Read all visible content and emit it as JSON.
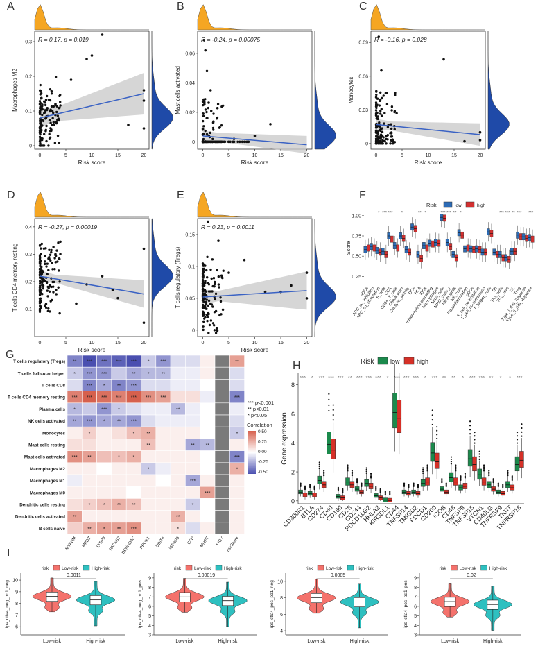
{
  "colors": {
    "density_top": "#f5a623",
    "density_right": "#1f4aa8",
    "fit_line": "#3a62c4",
    "band": "#c8c8c8",
    "low_F": "#2c6bb5",
    "high_F": "#d32f2f",
    "low_H": "#1b8a4c",
    "high_H": "#d63027",
    "low_I": "#f4726c",
    "high_I": "#2ec0c0",
    "heat_pos": "#d6604d",
    "heat_neg": "#4a4fb0"
  },
  "chart_data": [
    {
      "panel": "A",
      "type": "scatter",
      "annotation": "R = 0.17, p = 0.019",
      "xlabel": "Risk score",
      "ylabel": "Macrophages M2",
      "xticks": [
        0,
        5,
        10,
        15,
        20
      ],
      "yticks": [
        0.0,
        0.1,
        0.2,
        0.3
      ],
      "xlim": [
        -1,
        21
      ],
      "ylim": [
        -0.01,
        0.33
      ],
      "fit": {
        "x": [
          0,
          20
        ],
        "y": [
          0.08,
          0.15
        ],
        "band": [
          0.02,
          0.06
        ]
      },
      "outliers": [
        [
          3,
          0.12
        ],
        [
          6,
          0.19
        ],
        [
          9,
          0.25
        ],
        [
          10,
          0.26
        ],
        [
          12,
          0.32
        ],
        [
          17,
          0.06
        ],
        [
          20,
          0.13
        ],
        [
          20,
          0.16
        ],
        [
          20,
          0.05
        ]
      ]
    },
    {
      "panel": "B",
      "type": "scatter",
      "annotation": "R = -0.24, p = 0.00075",
      "xlabel": "Risk score",
      "ylabel": "Mast cells activated",
      "xticks": [
        0,
        5,
        10,
        15,
        20
      ],
      "yticks": [
        0.0,
        0.02,
        0.04,
        0.06
      ],
      "xlim": [
        -1,
        21
      ],
      "ylim": [
        -0.005,
        0.075
      ],
      "fit": {
        "x": [
          0,
          20
        ],
        "y": [
          0.004,
          -0.002
        ],
        "band": [
          0.003,
          0.006
        ]
      },
      "outliers": [
        [
          0.2,
          0.069
        ],
        [
          0.5,
          0.062
        ],
        [
          0.8,
          0.048
        ],
        [
          1.5,
          0.035
        ],
        [
          2,
          0.013
        ],
        [
          6,
          0.002
        ],
        [
          10,
          0.004
        ],
        [
          13,
          0.012
        ]
      ]
    },
    {
      "panel": "C",
      "type": "scatter",
      "annotation": "R = -0.16, p = 0.028",
      "xlabel": "Risk score",
      "ylabel": "Monocytes",
      "xticks": [
        0,
        5,
        10,
        15,
        20
      ],
      "yticks": [
        0.0,
        0.03,
        0.06,
        0.09
      ],
      "xlim": [
        -1,
        21
      ],
      "ylim": [
        -0.005,
        0.1
      ],
      "fit": {
        "x": [
          0,
          20
        ],
        "y": [
          0.017,
          0.008
        ],
        "band": [
          0.004,
          0.01
        ]
      },
      "outliers": [
        [
          0.5,
          0.095
        ],
        [
          1,
          0.065
        ],
        [
          2,
          0.045
        ],
        [
          13,
          0.075
        ],
        [
          20,
          0.01
        ],
        [
          20,
          0.003
        ],
        [
          17,
          0.002
        ]
      ]
    },
    {
      "panel": "D",
      "type": "scatter",
      "annotation": "R = -0.27, p = 0.00019",
      "xlabel": "Risk score",
      "ylabel": "T cells CD4 memory resting",
      "xticks": [
        0,
        5,
        10,
        15,
        20
      ],
      "yticks": [
        0.1,
        0.2,
        0.3,
        0.4
      ],
      "xlim": [
        -1,
        21
      ],
      "ylim": [
        0.0,
        0.43
      ],
      "fit": {
        "x": [
          0,
          20
        ],
        "y": [
          0.22,
          0.155
        ],
        "band": [
          0.015,
          0.05
        ]
      },
      "outliers": [
        [
          3,
          0.3
        ],
        [
          7,
          0.12
        ],
        [
          9,
          0.19
        ],
        [
          12,
          0.22
        ],
        [
          14,
          0.17
        ],
        [
          15,
          0.14
        ],
        [
          20,
          0.32
        ],
        [
          20,
          0.05
        ]
      ]
    },
    {
      "panel": "E",
      "type": "scatter",
      "annotation": "R = 0.23, p = 0.0011",
      "xlabel": "Risk score",
      "ylabel": "T cells regulatory (Tregs)",
      "xticks": [
        0,
        5,
        10,
        15,
        20
      ],
      "yticks": [
        0.0,
        0.05,
        0.1,
        0.15
      ],
      "xlim": [
        -1,
        21
      ],
      "ylim": [
        -0.01,
        0.175
      ],
      "fit": {
        "x": [
          0,
          20
        ],
        "y": [
          0.052,
          0.062
        ],
        "band": [
          0.008,
          0.03
        ]
      },
      "outliers": [
        [
          1,
          0.17
        ],
        [
          3,
          0.14
        ],
        [
          5,
          0.09
        ],
        [
          8,
          0.11
        ],
        [
          12,
          0.06
        ],
        [
          15,
          0.06
        ],
        [
          17,
          0.07
        ],
        [
          20,
          0.05
        ],
        [
          20,
          0.09
        ]
      ]
    },
    {
      "panel": "F",
      "type": "box",
      "legend_title": "Risk",
      "legend": [
        "low",
        "high"
      ],
      "ylabel": "Score",
      "yticks": [
        0.25,
        0.5,
        0.75,
        1.0
      ],
      "ylim": [
        0.15,
        1.05
      ],
      "categories": [
        "aDCs",
        "APC_co_inhibition",
        "APC_co_stimulation",
        "B_cells",
        "CCR",
        "CD8+_T_cells",
        "Check-point",
        "Cytolytic_activity",
        "DCs",
        "HLA",
        "iDCs",
        "Inflammation-promoting",
        "Macrophages",
        "Mast_cells",
        "MHC_class_I",
        "Neutrophils",
        "NK_cells",
        "Parainflammation",
        "pDCs",
        "T_cell_co-inhibition",
        "T_cell_co-stimulation",
        "T_helper_cells",
        "Tfh",
        "Th1_cells",
        "Th2_cells",
        "TIL",
        "Treg",
        "Type_I_IFN_Reponse",
        "Type_II_IFN_Reponse"
      ],
      "sig": [
        "",
        "",
        "*",
        "***",
        "***",
        "",
        "*",
        "",
        "",
        "**",
        "*",
        "",
        "",
        "***",
        "***",
        "**",
        "*",
        "",
        "",
        "",
        "",
        "",
        "",
        "***",
        "***",
        "**",
        "***",
        "",
        "***"
      ],
      "low_medians": [
        0.58,
        0.62,
        0.57,
        0.56,
        0.75,
        0.63,
        0.75,
        0.58,
        0.86,
        0.52,
        0.63,
        0.66,
        0.67,
        0.98,
        0.67,
        0.52,
        0.79,
        0.59,
        0.59,
        0.59,
        0.55,
        0.8,
        0.55,
        0.52,
        0.48,
        0.56,
        0.76,
        0.74,
        0.73
      ],
      "high_medians": [
        0.6,
        0.6,
        0.55,
        0.52,
        0.71,
        0.6,
        0.72,
        0.55,
        0.84,
        0.47,
        0.6,
        0.65,
        0.66,
        0.97,
        0.62,
        0.48,
        0.76,
        0.6,
        0.58,
        0.58,
        0.55,
        0.78,
        0.52,
        0.48,
        0.46,
        0.56,
        0.74,
        0.72,
        0.71
      ]
    },
    {
      "panel": "G",
      "type": "heatmap",
      "rows": [
        "T cells regulatory (Tregs)",
        "T cells follicular helper",
        "T cells CD8",
        "T cells CD4 memory resting",
        "Plasma cells",
        "NK cells activated",
        "Monocytes",
        "Mast cells resting",
        "Mast cells activated",
        "Macrophages M2",
        "Macrophages M1",
        "Macrophages M0",
        "Dendritic cells resting",
        "Dendritic cells activated",
        "B cells naive"
      ],
      "cols": [
        "MYADM",
        "MPDZ",
        "LTBP3",
        "PAPSS2",
        "DENND4C",
        "PROX1",
        "DDIT4",
        "IGFBP3",
        "CFD",
        "MMP7",
        "PIGY",
        "riskScore"
      ],
      "values": [
        [
          -0.35,
          -0.55,
          -0.4,
          -0.45,
          -0.5,
          -0.15,
          -0.3,
          -0.1,
          -0.1,
          0.05,
          0,
          0.3
        ],
        [
          -0.15,
          -0.3,
          -0.3,
          -0.15,
          -0.25,
          -0.2,
          -0.2,
          -0.05,
          -0.05,
          0.05,
          0,
          -0.1
        ],
        [
          -0.1,
          -0.35,
          -0.25,
          -0.35,
          -0.3,
          -0.1,
          -0.1,
          -0.05,
          -0.05,
          0.0,
          0,
          -0.1
        ],
        [
          0.4,
          0.5,
          0.45,
          0.4,
          0.5,
          0.35,
          0.3,
          0.1,
          0.1,
          -0.05,
          0,
          -0.35
        ],
        [
          -0.2,
          -0.15,
          -0.3,
          -0.15,
          -0.1,
          -0.05,
          -0.05,
          -0.2,
          -0.05,
          0.0,
          0,
          -0.05
        ],
        [
          -0.25,
          -0.3,
          -0.25,
          -0.25,
          -0.3,
          -0.1,
          -0.05,
          -0.05,
          -0.05,
          0.0,
          0,
          -0.1
        ],
        [
          0.05,
          0.15,
          0.05,
          0.1,
          0.2,
          0.25,
          0.05,
          0.05,
          0.05,
          0.0,
          0,
          -0.15
        ],
        [
          0.1,
          0.1,
          0.05,
          0.05,
          0.05,
          0.2,
          0.05,
          0.05,
          -0.25,
          -0.2,
          0,
          0.05
        ],
        [
          0.35,
          0.3,
          0.2,
          0.2,
          0.25,
          0.05,
          0.05,
          0.05,
          0.05,
          0.0,
          0,
          -0.35
        ],
        [
          0.05,
          0.05,
          0.0,
          0.05,
          0.05,
          -0.15,
          -0.05,
          0.05,
          0.05,
          0.0,
          0,
          0.25
        ],
        [
          -0.05,
          0.05,
          0.05,
          0.05,
          0.05,
          0.05,
          0.0,
          0.05,
          -0.25,
          0.05,
          0,
          0.05
        ],
        [
          0.05,
          0.05,
          0.05,
          0.05,
          0.0,
          0.05,
          0.05,
          0.05,
          0.05,
          0.3,
          0,
          0.05
        ],
        [
          0.1,
          0.15,
          0.2,
          0.25,
          0.2,
          0.05,
          0.05,
          0.05,
          -0.15,
          0.0,
          0,
          0.05
        ],
        [
          0.3,
          0.05,
          0.05,
          0.05,
          0.05,
          0.05,
          0.05,
          0.25,
          0.05,
          0.0,
          0,
          0.05
        ],
        [
          0.15,
          0.25,
          0.3,
          0.3,
          0.35,
          0.05,
          0.05,
          0.1,
          -0.1,
          0.05,
          0,
          0.05
        ]
      ],
      "stars": [
        [
          "**",
          "***",
          "***",
          "***",
          "***",
          "*",
          "***",
          "",
          "",
          "",
          "",
          "**"
        ],
        [
          "*",
          "***",
          "***",
          "",
          "**",
          "*",
          "**",
          "",
          "",
          "",
          "",
          ""
        ],
        [
          "",
          "***",
          "*",
          "**",
          "***",
          "",
          "",
          "",
          "",
          "",
          "",
          ""
        ],
        [
          "***",
          "***",
          "***",
          "***",
          "***",
          "***",
          "***",
          "",
          "",
          "",
          "",
          "***"
        ],
        [
          "*",
          "",
          "***",
          "*",
          "",
          "",
          "",
          "**",
          "",
          "",
          "",
          ""
        ],
        [
          "**",
          "***",
          "*",
          "**",
          "***",
          "",
          "",
          "",
          "",
          "",
          "",
          ""
        ],
        [
          "",
          "*",
          "",
          "",
          "*",
          "**",
          "",
          "",
          "",
          "",
          "",
          "*"
        ],
        [
          "",
          "",
          "",
          "",
          "",
          "**",
          "",
          "",
          "**",
          "**",
          "",
          ""
        ],
        [
          "***",
          "**",
          "",
          "*",
          "*",
          "",
          "",
          "",
          "",
          "",
          "",
          "***"
        ],
        [
          "",
          "",
          "",
          "",
          "",
          "*",
          "",
          "",
          "",
          "",
          "",
          "*"
        ],
        [
          "",
          "",
          "",
          "",
          "",
          "",
          "",
          "",
          "***",
          "",
          "",
          ""
        ],
        [
          "",
          "",
          "",
          "",
          "",
          "",
          "",
          "",
          "",
          "***",
          "",
          ""
        ],
        [
          "",
          "*",
          "*",
          "**",
          "**",
          "",
          "",
          "",
          "*",
          "",
          "",
          ""
        ],
        [
          "**",
          "",
          "",
          "",
          "",
          "",
          "",
          "**",
          "",
          "",
          "",
          ""
        ],
        [
          "",
          "**",
          "*",
          "**",
          "***",
          "",
          "",
          "*",
          "",
          "",
          "",
          ""
        ]
      ],
      "legend_stars": [
        "*** p<0.001",
        "** p<0.01",
        "* p<0.05"
      ],
      "colorbar_title": "Correlation",
      "colorbar_ticks": [
        "0.50",
        "0.25",
        "0.00",
        "-0.25",
        "-0.50"
      ]
    },
    {
      "panel": "H",
      "type": "box",
      "legend_title": "Risk",
      "legend": [
        "low",
        "high"
      ],
      "ylabel": "Gene expression",
      "yticks": [
        0,
        2,
        4,
        6,
        8
      ],
      "ylim": [
        -0.2,
        8.8
      ],
      "categories": [
        "CD200R1",
        "BTLA",
        "CD274",
        "CD40",
        "CD160",
        "CD28",
        "CD244",
        "PDCD1LG2",
        "HHLA2",
        "KIR3DL1",
        "CD44",
        "TNFSF14",
        "TMIGD2",
        "PDCD1",
        "CD200",
        "ICOS",
        "CD48",
        "TNFSF9",
        "TNFSF15",
        "VTCN1",
        "CD40LG",
        "TNFRSF9",
        "TIGIT",
        "TNFRSF18"
      ],
      "sig": [
        "***",
        "*",
        "***",
        "***",
        "***",
        "**",
        "***",
        "***",
        "***",
        "*",
        "***",
        "***",
        "***",
        "*",
        "***",
        "**",
        "**",
        "*",
        "***",
        "***",
        "**",
        "*",
        "*",
        "***"
      ],
      "low_medians": [
        0.6,
        0.5,
        1.4,
        3.9,
        0.3,
        1.3,
        0.8,
        1.2,
        0.35,
        0.05,
        6.1,
        0.6,
        0.6,
        1.2,
        3.3,
        0.8,
        1.6,
        0.9,
        2.9,
        1.8,
        1.1,
        0.6,
        1.1,
        2.5
      ],
      "high_medians": [
        0.4,
        0.4,
        1.1,
        3.5,
        0.2,
        1.1,
        0.6,
        1.0,
        0.2,
        0.03,
        5.7,
        0.5,
        0.5,
        1.3,
        2.7,
        0.6,
        1.3,
        1.0,
        2.5,
        1.3,
        0.8,
        0.5,
        0.9,
        2.8
      ]
    },
    {
      "panel": "I",
      "type": "violin",
      "legend_title": "risk",
      "legend": [
        "Low-risk",
        "High-risk"
      ],
      "plots": [
        {
          "ylabel": "ips_ctla4_neg_pd1_neg",
          "pvalue": "0.0011",
          "yticks": [
            6,
            7,
            8,
            9,
            10
          ],
          "ylim": [
            5.3,
            10.6
          ],
          "low_median": 8.6,
          "high_median": 8.3
        },
        {
          "ylabel": "ips_ctla4_neg_pd1_pos",
          "pvalue": "0.00019",
          "yticks": [
            3,
            4,
            5,
            6,
            7,
            8,
            9
          ],
          "ylim": [
            3,
            9.5
          ],
          "low_median": 7.0,
          "high_median": 6.6
        },
        {
          "ylabel": "ips_ctla4_pos_pd1_neg",
          "pvalue": "0.0085",
          "yticks": [
            4,
            6,
            8,
            10
          ],
          "ylim": [
            3.5,
            11
          ],
          "low_median": 8.0,
          "high_median": 7.5
        },
        {
          "ylabel": "ips_ctla4_pos_pd1_pos",
          "pvalue": "0.02",
          "yticks": [
            3,
            4,
            5,
            6,
            7,
            8,
            9
          ],
          "ylim": [
            3,
            9.5
          ],
          "low_median": 6.5,
          "high_median": 6.2
        }
      ]
    }
  ]
}
